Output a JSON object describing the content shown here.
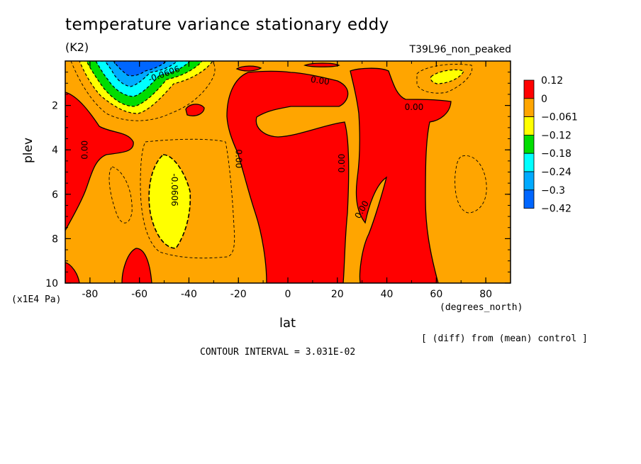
{
  "chart_data": {
    "type": "contour",
    "title": "temperature variance stationary eddy",
    "units": "(K2)",
    "experiment": "T39L96_non_peaked",
    "xlabel": "lat",
    "ylabel": "plev",
    "x_units": "(degrees_north)",
    "y_units": "(x1E4 Pa)",
    "xlim": [
      -90,
      90
    ],
    "ylim": [
      0,
      10
    ],
    "y_inverted": true,
    "x_ticks": [
      "-80",
      "-60",
      "-40",
      "-20",
      "0",
      "20",
      "40",
      "60",
      "80"
    ],
    "x_tick_values": [
      -80,
      -60,
      -40,
      -20,
      0,
      20,
      40,
      60,
      80
    ],
    "y_ticks": [
      "2",
      "4",
      "6",
      "8",
      "10"
    ],
    "y_tick_values": [
      2,
      4,
      6,
      8,
      10
    ],
    "note": "[ (diff) from (mean) control ]",
    "contour_interval": "CONTOUR INTERVAL = 3.031E-02",
    "legend": {
      "placement": "right",
      "levels": [
        "0.12",
        "0",
        "−0.061",
        "−0.12",
        "−0.18",
        "−0.24",
        "−0.3",
        "−0.42"
      ],
      "colors": [
        "#ff0000",
        "#ffa500",
        "#ffff00",
        "#00dd00",
        "#00ffff",
        "#00aaff",
        "#0066ff"
      ]
    },
    "contour_labels": [
      {
        "text": "0.00",
        "lat": -82,
        "plev": 4.0,
        "angle": -90
      },
      {
        "text": "0.00",
        "lat": -20,
        "plev": 4.4,
        "angle": 90
      },
      {
        "text": "0.00",
        "lat": 13,
        "plev": 0.9,
        "angle": 8
      },
      {
        "text": "0.00",
        "lat": 22,
        "plev": 4.6,
        "angle": -90
      },
      {
        "text": "0.00",
        "lat": 30,
        "plev": 6.7,
        "angle": -60
      },
      {
        "text": "0.00",
        "lat": 51,
        "plev": 2.1,
        "angle": 0
      },
      {
        "text": "-0.0606",
        "lat": -50,
        "plev": 0.6,
        "angle": -20
      },
      {
        "text": "-0.0606",
        "lat": -46,
        "plev": 5.8,
        "angle": 90
      }
    ]
  }
}
